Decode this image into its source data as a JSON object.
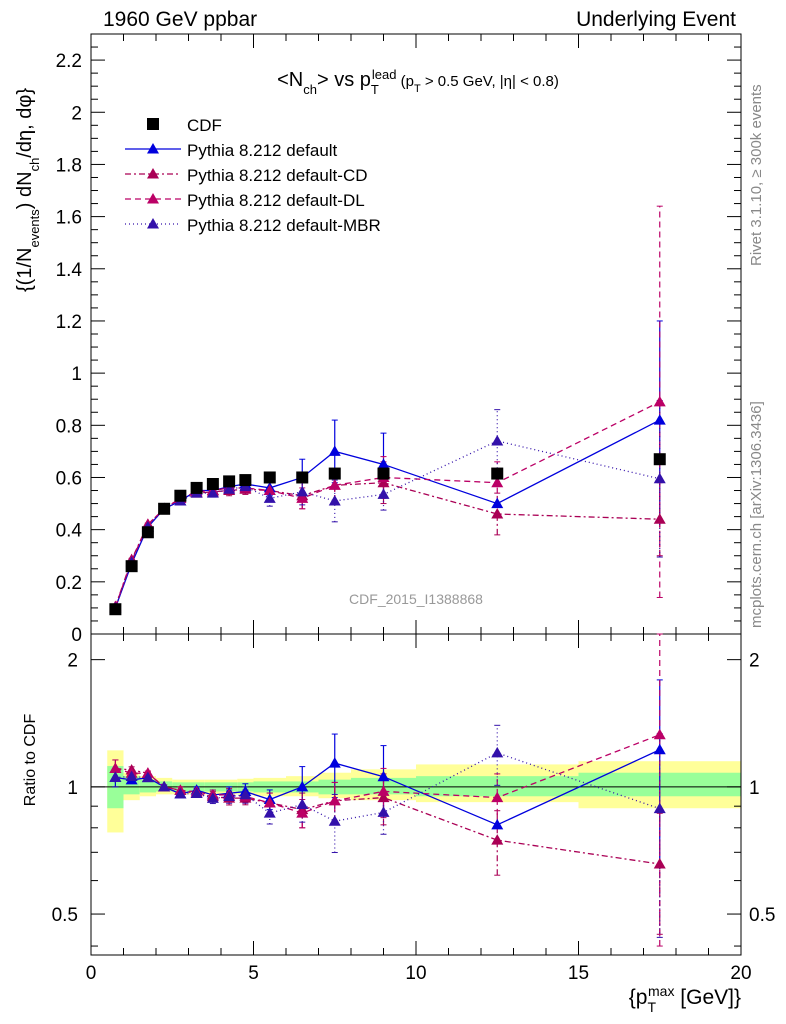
{
  "header": {
    "left": "1960 GeV ppbar",
    "right": "Underlying Event"
  },
  "side_labels": {
    "rivet": "Rivet 3.1.10, ≥ 300k events",
    "mcplots": "mcplots.cern.ch [arXiv:1306.3436]"
  },
  "watermark": "CDF_2015_I1388868",
  "colors": {
    "default": "#0000dd",
    "cd": "#aa0055",
    "dl": "#bb0066",
    "mbr": "#3311aa",
    "data": "#000000",
    "band_inner": "#99ff99",
    "band_outer": "#ffff99"
  },
  "chart_data": {
    "type": "scatter",
    "title": "<N_ch> vs p_T^lead (p_T > 0.5 GeV, |η| < 0.8)",
    "xlabel": "{p_T^max [GeV]}",
    "ylabel_main": "{(1/N_events) dN_ch/dη, dφ}",
    "ylabel_ratio": "Ratio to CDF",
    "xlim": [
      0,
      20
    ],
    "ylim_main": [
      0,
      2.3
    ],
    "ylim_ratio": [
      0.4,
      2.3
    ],
    "ratio_log_scale": true,
    "x_ticks": [
      "0",
      "5",
      "10",
      "15",
      "20"
    ],
    "y_ticks_main": [
      "0",
      "0.2",
      "0.4",
      "0.6",
      "0.8",
      "1",
      "1.2",
      "1.4",
      "1.6",
      "1.8",
      "2",
      "2.2"
    ],
    "y_ticks_ratio": [
      "0.5",
      "1",
      "2"
    ],
    "legend_position": "top-left",
    "x": [
      0.75,
      1.25,
      1.75,
      2.25,
      2.75,
      3.25,
      3.75,
      4.25,
      4.75,
      5.5,
      6.5,
      7.5,
      9.0,
      12.5,
      17.5
    ],
    "data": {
      "name": "CDF",
      "values": [
        0.095,
        0.26,
        0.39,
        0.48,
        0.53,
        0.56,
        0.575,
        0.585,
        0.59,
        0.6,
        0.6,
        0.615,
        0.615,
        0.615,
        0.67
      ],
      "band_inner_edges": [
        0.5,
        1.0,
        1.5,
        2.0,
        2.5,
        3.0,
        3.5,
        4.0,
        4.5,
        5.0,
        6.0,
        7.0,
        8.0,
        10.0,
        15.0,
        20.0
      ],
      "band_inner_lo": [
        0.89,
        0.96,
        0.97,
        0.975,
        0.975,
        0.975,
        0.975,
        0.975,
        0.975,
        0.97,
        0.97,
        0.96,
        0.96,
        0.95,
        0.95
      ],
      "band_inner_hi": [
        1.12,
        1.06,
        1.04,
        1.03,
        1.025,
        1.025,
        1.025,
        1.025,
        1.025,
        1.03,
        1.03,
        1.04,
        1.05,
        1.06,
        1.08
      ],
      "band_outer_lo": [
        0.78,
        0.93,
        0.95,
        0.96,
        0.96,
        0.96,
        0.96,
        0.96,
        0.96,
        0.95,
        0.95,
        0.94,
        0.93,
        0.92,
        0.89
      ],
      "band_outer_hi": [
        1.22,
        1.08,
        1.06,
        1.05,
        1.04,
        1.04,
        1.04,
        1.04,
        1.045,
        1.05,
        1.06,
        1.08,
        1.1,
        1.13,
        1.15
      ]
    },
    "series": [
      {
        "name": "Pythia 8.212 default",
        "color_key": "default",
        "dash": "solid",
        "values": [
          0.1,
          0.27,
          0.41,
          0.48,
          0.51,
          0.55,
          0.55,
          0.565,
          0.575,
          0.56,
          0.6,
          0.7,
          0.65,
          0.5,
          0.82
        ],
        "errors": [
          0.005,
          0.005,
          0.005,
          0.005,
          0.01,
          0.01,
          0.015,
          0.02,
          0.025,
          0.03,
          0.07,
          0.12,
          0.12,
          0.0,
          0.38
        ]
      },
      {
        "name": "Pythia 8.212 default-CD",
        "color_key": "cd",
        "dash": "6,3,2,3",
        "values": [
          0.105,
          0.285,
          0.42,
          0.48,
          0.52,
          0.54,
          0.545,
          0.55,
          0.555,
          0.55,
          0.53,
          0.57,
          0.58,
          0.46,
          0.44
        ],
        "errors": [
          0.005,
          0.005,
          0.005,
          0.005,
          0.01,
          0.01,
          0.015,
          0.02,
          0.02,
          0.03,
          0.05,
          0.06,
          0.08,
          0.08,
          0.14
        ]
      },
      {
        "name": "Pythia 8.212 default-DL",
        "color_key": "dl",
        "dash": "6,4",
        "values": [
          0.105,
          0.28,
          0.42,
          0.48,
          0.52,
          0.545,
          0.55,
          0.56,
          0.56,
          0.55,
          0.52,
          0.57,
          0.6,
          0.58,
          0.89
        ],
        "errors": [
          0.005,
          0.005,
          0.005,
          0.005,
          0.01,
          0.01,
          0.015,
          0.02,
          0.02,
          0.03,
          0.04,
          0.06,
          0.08,
          0.08,
          0.75
        ]
      },
      {
        "name": "Pythia 8.212 default-MBR",
        "color_key": "mbr",
        "dash": "1,3",
        "values": [
          0.1,
          0.275,
          0.41,
          0.48,
          0.51,
          0.54,
          0.54,
          0.555,
          0.565,
          0.52,
          0.545,
          0.51,
          0.535,
          0.74,
          0.595
        ],
        "errors": [
          0.005,
          0.005,
          0.005,
          0.005,
          0.01,
          0.01,
          0.015,
          0.02,
          0.025,
          0.03,
          0.05,
          0.08,
          0.06,
          0.12,
          0.3
        ]
      }
    ]
  }
}
